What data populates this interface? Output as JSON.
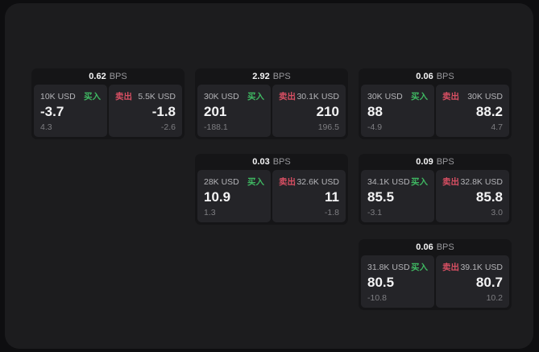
{
  "colors": {
    "page_bg": "#0e0e10",
    "panel_bg": "#1c1c1e",
    "card_bg": "#151517",
    "tile_bg": "#242428",
    "buy_green": "#3fb862",
    "sell_red": "#d84f63",
    "label_gray": "#b4b4b8",
    "dim_gray": "#7e7e82",
    "value_white": "#f4f4f5",
    "unit_gray": "#98989c"
  },
  "labels": {
    "bps_unit": "BPS",
    "buy": "买入",
    "sell": "卖出"
  },
  "cards": [
    {
      "row": 1,
      "col": 1,
      "bps": "0.62",
      "buy": {
        "amount": "10K USD",
        "price": "-3.7",
        "delta": "4.3"
      },
      "sell": {
        "amount": "5.5K USD",
        "price": "-1.8",
        "delta": "-2.6"
      }
    },
    {
      "row": 1,
      "col": 2,
      "bps": "2.92",
      "buy": {
        "amount": "30K USD",
        "price": "201",
        "delta": "-188.1"
      },
      "sell": {
        "amount": "30.1K USD",
        "price": "210",
        "delta": "196.5"
      }
    },
    {
      "row": 1,
      "col": 3,
      "bps": "0.06",
      "buy": {
        "amount": "30K USD",
        "price": "88",
        "delta": "-4.9"
      },
      "sell": {
        "amount": "30K USD",
        "price": "88.2",
        "delta": "4.7"
      }
    },
    {
      "row": 2,
      "col": 2,
      "bps": "0.03",
      "buy": {
        "amount": "28K USD",
        "price": "10.9",
        "delta": "1.3"
      },
      "sell": {
        "amount": "32.6K USD",
        "price": "11",
        "delta": "-1.8"
      }
    },
    {
      "row": 2,
      "col": 3,
      "bps": "0.09",
      "buy": {
        "amount": "34.1K USD",
        "price": "85.5",
        "delta": "-3.1"
      },
      "sell": {
        "amount": "32.8K USD",
        "price": "85.8",
        "delta": "3.0"
      }
    },
    {
      "row": 3,
      "col": 3,
      "bps": "0.06",
      "buy": {
        "amount": "31.8K USD",
        "price": "80.5",
        "delta": "-10.8"
      },
      "sell": {
        "amount": "39.1K USD",
        "price": "80.7",
        "delta": "10.2"
      }
    }
  ]
}
